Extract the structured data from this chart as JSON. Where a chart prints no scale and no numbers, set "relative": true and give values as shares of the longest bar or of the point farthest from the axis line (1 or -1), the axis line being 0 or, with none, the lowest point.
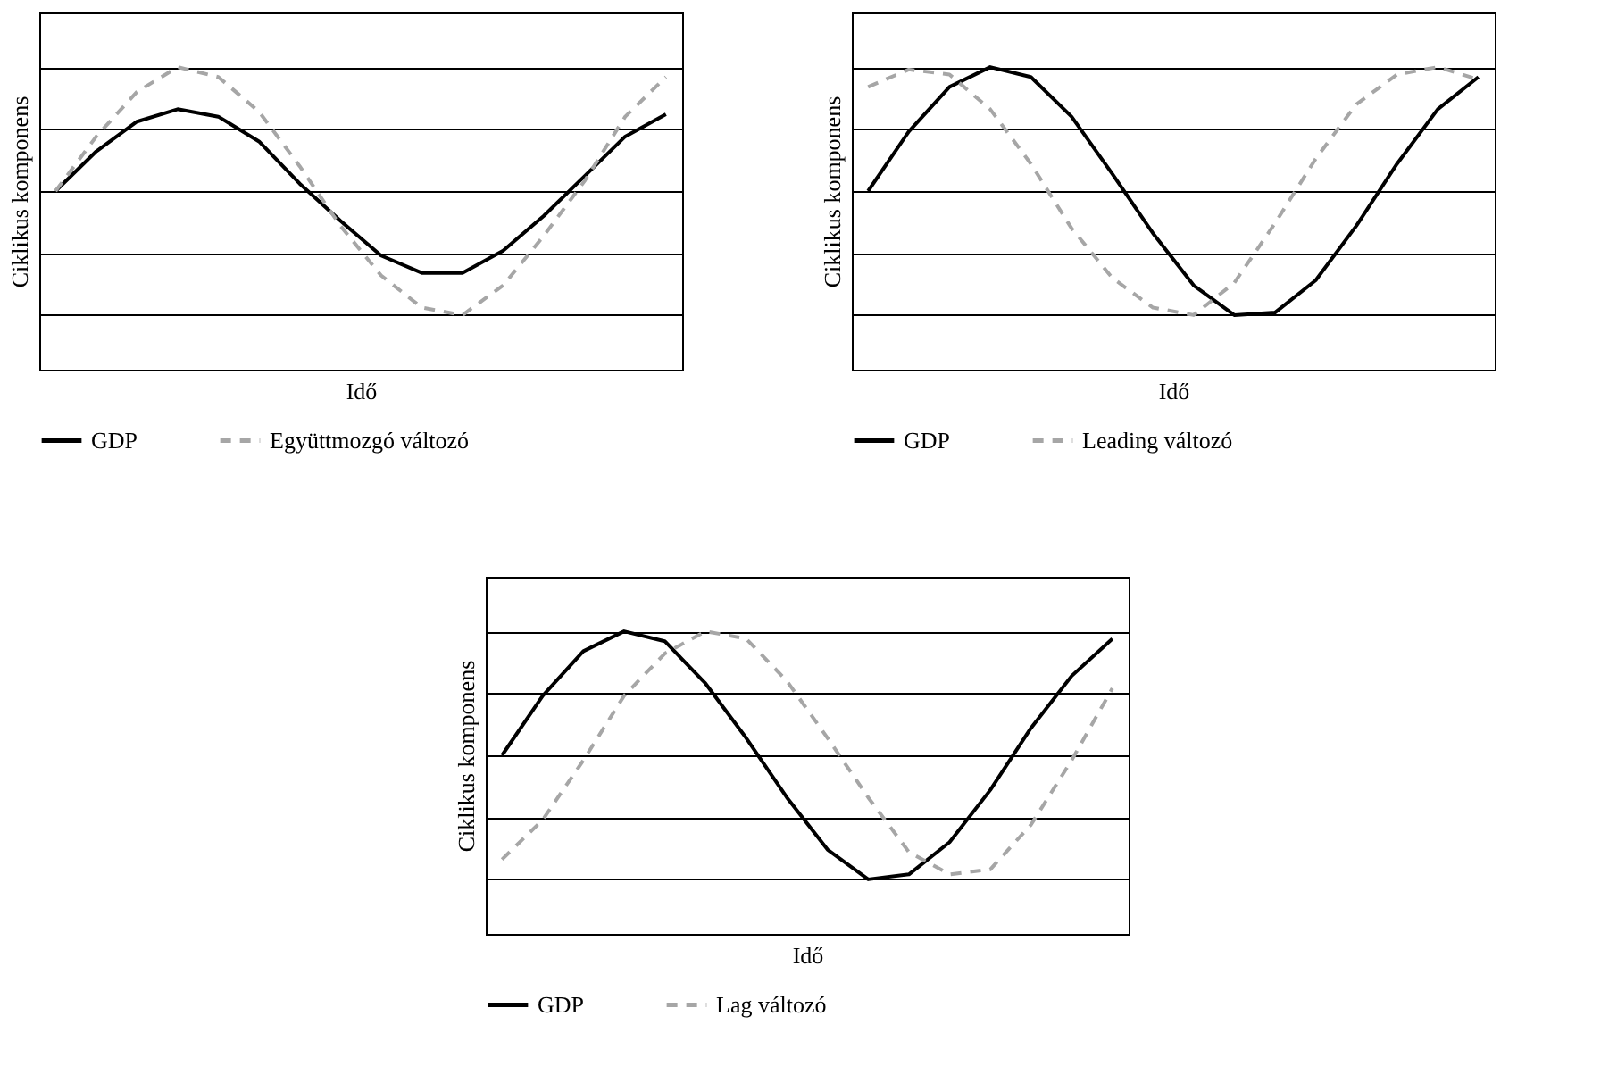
{
  "chart_data": [
    {
      "type": "line",
      "relative": true,
      "xlabel": "Idő",
      "ylabel": "Ciklikus komponens",
      "grid": "y",
      "legend": "bottom",
      "marker": "none",
      "categories": [
        null,
        null,
        null,
        null,
        null,
        null,
        null,
        null,
        null,
        null,
        null,
        null,
        null,
        null,
        null,
        null
      ],
      "series": [
        {
          "name": "GDP",
          "color": "#000000",
          "line_style": "solid",
          "values": [
            0.5,
            0.66,
            0.78,
            0.83,
            0.8,
            0.7,
            0.53,
            0.38,
            0.24,
            0.17,
            0.17,
            0.26,
            0.4,
            0.56,
            0.72,
            0.81
          ]
        },
        {
          "name": "Együttmozgó változó",
          "color": "#a6a6a6",
          "line_style": "dashed",
          "values": [
            0.5,
            0.72,
            0.9,
            1.0,
            0.96,
            0.82,
            0.6,
            0.36,
            0.16,
            0.03,
            0.0,
            0.12,
            0.32,
            0.54,
            0.8,
            0.96
          ]
        }
      ]
    },
    {
      "type": "line",
      "relative": true,
      "xlabel": "Idő",
      "ylabel": "Ciklikus komponens",
      "grid": "y",
      "legend": "bottom",
      "marker": "none",
      "categories": [
        null,
        null,
        null,
        null,
        null,
        null,
        null,
        null,
        null,
        null,
        null,
        null,
        null,
        null,
        null,
        null
      ],
      "series": [
        {
          "name": "GDP",
          "color": "#000000",
          "line_style": "solid",
          "values": [
            0.5,
            0.74,
            0.92,
            1.0,
            0.96,
            0.8,
            0.57,
            0.33,
            0.12,
            0.0,
            0.01,
            0.14,
            0.36,
            0.61,
            0.83,
            0.96
          ]
        },
        {
          "name": "Leading változó",
          "color": "#a6a6a6",
          "line_style": "dashed",
          "values": [
            0.92,
            0.99,
            0.97,
            0.83,
            0.61,
            0.35,
            0.15,
            0.03,
            0.0,
            0.13,
            0.37,
            0.63,
            0.85,
            0.97,
            1.0,
            0.95
          ]
        }
      ]
    },
    {
      "type": "line",
      "relative": true,
      "xlabel": "Idő",
      "ylabel": "Ciklikus komponens",
      "grid": "y",
      "legend": "bottom",
      "marker": "none",
      "categories": [
        null,
        null,
        null,
        null,
        null,
        null,
        null,
        null,
        null,
        null,
        null,
        null,
        null,
        null,
        null,
        null
      ],
      "series": [
        {
          "name": "GDP",
          "color": "#000000",
          "line_style": "solid",
          "values": [
            0.5,
            0.74,
            0.92,
            1.0,
            0.96,
            0.79,
            0.57,
            0.33,
            0.12,
            0.0,
            0.02,
            0.15,
            0.36,
            0.61,
            0.82,
            0.97
          ]
        },
        {
          "name": "Lag változó",
          "color": "#a6a6a6",
          "line_style": "dashed",
          "values": [
            0.08,
            0.24,
            0.48,
            0.74,
            0.91,
            1.0,
            0.97,
            0.8,
            0.57,
            0.33,
            0.11,
            0.02,
            0.04,
            0.22,
            0.48,
            0.77
          ]
        }
      ]
    }
  ]
}
